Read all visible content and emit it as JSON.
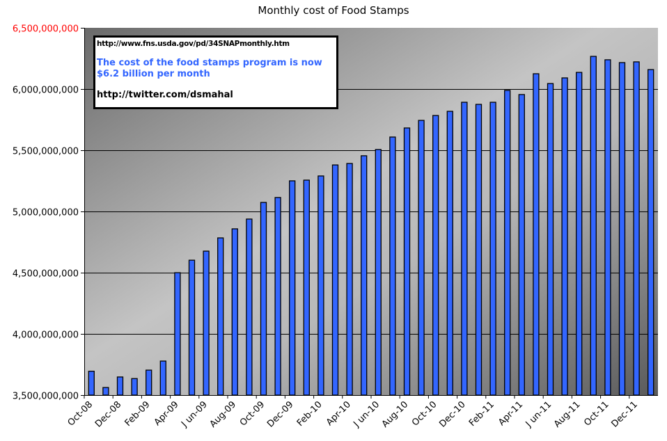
{
  "chart_data": {
    "type": "bar",
    "title": "Monthly cost of Food Stamps",
    "xlabel": "",
    "ylabel": "",
    "ylim": [
      3500000000,
      6500000000
    ],
    "yticks": [
      3500000000,
      4000000000,
      4500000000,
      5000000000,
      5500000000,
      6000000000,
      6500000000
    ],
    "ytick_labels": [
      "3,500,000,000",
      "4,000,000,000",
      "4,500,000,000",
      "5,000,000,000",
      "5,500,000,000",
      "6,000,000,000",
      "6,500,000,000"
    ],
    "grid": true,
    "categories": [
      "Oct-08",
      "Nov-08",
      "Dec-08",
      "Jan-09",
      "Feb-09",
      "Mar-09",
      "Apr-09",
      "May-09",
      "Jun-09",
      "Jul-09",
      "Aug-09",
      "Sep-09",
      "Oct-09",
      "Nov-09",
      "Dec-09",
      "Jan-10",
      "Feb-10",
      "Mar-10",
      "Apr-10",
      "May-10",
      "Jun-10",
      "Jul-10",
      "Aug-10",
      "Sep-10",
      "Oct-10",
      "Nov-10",
      "Dec-10",
      "Jan-11",
      "Feb-11",
      "Mar-11",
      "Apr-11",
      "May-11",
      "Jun-11",
      "Jul-11",
      "Aug-11",
      "Sep-11",
      "Oct-11",
      "Nov-11",
      "Dec-11",
      "Jan-12"
    ],
    "xtick_labels": [
      "Oct-08",
      "Dec-08",
      "Feb-09",
      "Apr-09",
      "J un-09",
      "Aug-09",
      "Oct-09",
      "Dec-09",
      "Feb-10",
      "Apr-10",
      "J un-10",
      "Aug-10",
      "Oct-10",
      "Dec-10",
      "Feb-11",
      "Apr-11",
      "J un-11",
      "Aug-11",
      "Oct-11",
      "Dec-11"
    ],
    "values": [
      3695000000,
      3562000000,
      3648000000,
      3635000000,
      3704000000,
      3778000000,
      4500000000,
      4602000000,
      4676000000,
      4784000000,
      4858000000,
      4938000000,
      5074000000,
      5114000000,
      5250000000,
      5256000000,
      5290000000,
      5380000000,
      5392000000,
      5455000000,
      5506000000,
      5608000000,
      5682000000,
      5744000000,
      5784000000,
      5818000000,
      5892000000,
      5875000000,
      5892000000,
      5989000000,
      5955000000,
      6125000000,
      6045000000,
      6091000000,
      6136000000,
      6267000000,
      6239000000,
      6216000000,
      6222000000,
      6159000000
    ],
    "bar_color": "#3366ff",
    "ytick_top_color": "#ff0000",
    "annotation": {
      "source": "http://www.fns.usda.gov/pd/34SNAPmonthly.htm",
      "message": "The cost of the food stamps program is now $6.2 billion per month",
      "twitter": "http://twitter.com/dsmahal"
    }
  }
}
